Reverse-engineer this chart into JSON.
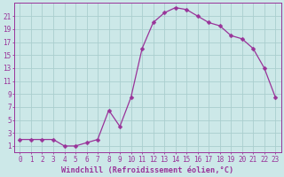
{
  "x": [
    0,
    1,
    2,
    3,
    4,
    5,
    6,
    7,
    8,
    9,
    10,
    11,
    12,
    13,
    14,
    15,
    16,
    17,
    18,
    19,
    20,
    21,
    22,
    23
  ],
  "y": [
    2,
    2,
    2,
    2,
    1,
    1,
    1.5,
    2,
    6.5,
    4,
    8.5,
    16,
    20,
    21.5,
    22.3,
    22,
    21,
    20,
    19.5,
    18,
    17.5,
    16,
    13,
    8.5
  ],
  "line_color": "#993399",
  "marker": "D",
  "marker_size": 2.5,
  "background_color": "#cce8e8",
  "grid_color": "#aacece",
  "xlabel": "Windchill (Refroidissement éolien,°C)",
  "xlim": [
    -0.5,
    23.5
  ],
  "ylim": [
    0,
    23
  ],
  "yticks": [
    1,
    3,
    5,
    7,
    9,
    11,
    13,
    15,
    17,
    19,
    21
  ],
  "xticks": [
    0,
    1,
    2,
    3,
    4,
    5,
    6,
    7,
    8,
    9,
    10,
    11,
    12,
    13,
    14,
    15,
    16,
    17,
    18,
    19,
    20,
    21,
    22,
    23
  ],
  "font_color": "#993399",
  "tick_fontsize": 5.5,
  "label_fontsize": 6.2
}
